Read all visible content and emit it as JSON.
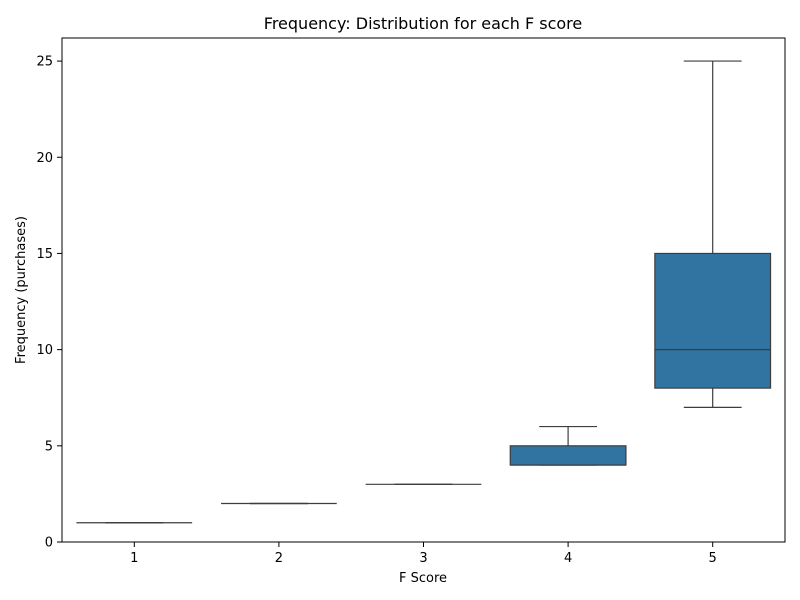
{
  "chart_data": {
    "type": "box",
    "title": "Frequency: Distribution for each F score",
    "xlabel": "F Score",
    "ylabel": "Frequency (purchases)",
    "ylim": [
      0,
      26.2
    ],
    "yticks": [
      0,
      5,
      10,
      15,
      20,
      25
    ],
    "categories": [
      "1",
      "2",
      "3",
      "4",
      "5"
    ],
    "boxes": [
      {
        "category": "1",
        "whisker_low": 1,
        "q1": 1,
        "median": 1,
        "q3": 1,
        "whisker_high": 1
      },
      {
        "category": "2",
        "whisker_low": 2,
        "q1": 2,
        "median": 2,
        "q3": 2,
        "whisker_high": 2
      },
      {
        "category": "3",
        "whisker_low": 3,
        "q1": 3,
        "median": 3,
        "q3": 3,
        "whisker_high": 3
      },
      {
        "category": "4",
        "whisker_low": 4,
        "q1": 4,
        "median": 4,
        "q3": 5,
        "whisker_high": 6
      },
      {
        "category": "5",
        "whisker_low": 7,
        "q1": 8,
        "median": 10,
        "q3": 15,
        "whisker_high": 25
      }
    ],
    "box_color": "#3274a1",
    "line_color": "#3d3d3d",
    "grid": false,
    "legend": false
  }
}
